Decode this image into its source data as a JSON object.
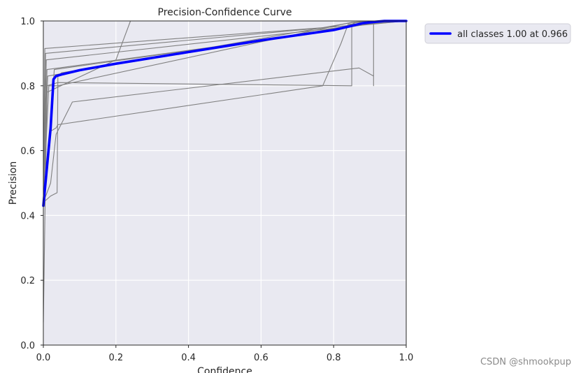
{
  "chart_data": {
    "type": "line",
    "title": "Precision-Confidence Curve",
    "xlabel": "Confidence",
    "ylabel": "Precision",
    "xlim": [
      0,
      1
    ],
    "ylim": [
      0,
      1
    ],
    "xticks": [
      "0.0",
      "0.2",
      "0.4",
      "0.6",
      "0.8",
      "1.0"
    ],
    "yticks": [
      "0.0",
      "0.2",
      "0.4",
      "0.6",
      "0.8",
      "1.0"
    ],
    "grid": true,
    "legend_position": "outside top-right",
    "series": [
      {
        "name": "all classes 1.00 at 0.966",
        "color": "#0000ff",
        "x": [
          0.0,
          0.01,
          0.02,
          0.028,
          0.035,
          0.05,
          0.1,
          0.2,
          0.3,
          0.4,
          0.5,
          0.6,
          0.7,
          0.8,
          0.85,
          0.88,
          0.91,
          0.94,
          0.966,
          1.0
        ],
        "y": [
          0.43,
          0.55,
          0.67,
          0.82,
          0.83,
          0.835,
          0.848,
          0.868,
          0.886,
          0.904,
          0.922,
          0.94,
          0.956,
          0.972,
          0.985,
          0.993,
          0.997,
          1.0,
          1.0,
          1.0
        ]
      }
    ],
    "class_curves": [
      {
        "color": "#808080",
        "x": [
          0.0,
          0.005,
          0.01,
          0.2,
          0.24
        ],
        "y": [
          0.07,
          0.45,
          0.78,
          0.88,
          1.0
        ]
      },
      {
        "color": "#808080",
        "x": [
          0.0,
          0.004,
          0.9,
          1.0
        ],
        "y": [
          0.45,
          0.915,
          0.99,
          1.0
        ]
      },
      {
        "color": "#808080",
        "x": [
          0.0,
          0.006,
          0.88,
          1.0
        ],
        "y": [
          0.44,
          0.9,
          0.99,
          1.0
        ]
      },
      {
        "color": "#808080",
        "x": [
          0.0,
          0.008,
          0.86,
          1.0
        ],
        "y": [
          0.44,
          0.88,
          0.985,
          1.0
        ]
      },
      {
        "color": "#808080",
        "x": [
          0.0,
          0.01,
          0.8,
          0.85,
          1.0
        ],
        "y": [
          0.45,
          0.85,
          0.97,
          0.99,
          1.0
        ]
      },
      {
        "color": "#808080",
        "x": [
          0.0,
          0.012,
          0.85,
          1.0
        ],
        "y": [
          0.45,
          0.83,
          0.995,
          1.0
        ]
      },
      {
        "color": "#808080",
        "x": [
          0.0,
          0.01,
          0.04,
          0.85,
          0.85,
          0.86,
          1.0
        ],
        "y": [
          0.45,
          0.8,
          0.81,
          0.8,
          0.99,
          0.995,
          1.0
        ]
      },
      {
        "color": "#808080",
        "x": [
          0.0,
          0.015,
          0.04,
          0.85,
          0.9,
          1.0
        ],
        "y": [
          0.45,
          0.8,
          0.8,
          0.996,
          1.0,
          1.0
        ]
      },
      {
        "color": "#808080",
        "x": [
          0.0,
          0.02,
          0.035,
          0.04,
          0.77,
          0.82,
          0.84,
          1.0
        ],
        "y": [
          0.44,
          0.66,
          0.67,
          0.68,
          0.8,
          0.93,
          0.99,
          1.0
        ]
      },
      {
        "color": "#808080",
        "x": [
          0.0,
          0.02,
          0.035,
          0.08,
          0.87,
          0.91,
          0.91,
          0.91,
          1.0
        ],
        "y": [
          0.44,
          0.5,
          0.65,
          0.75,
          0.855,
          0.83,
          0.8,
          1.0,
          1.0
        ]
      },
      {
        "color": "#808080",
        "x": [
          0.0,
          0.02,
          0.038,
          0.04,
          0.05,
          0.95,
          1.0
        ],
        "y": [
          0.44,
          0.46,
          0.47,
          0.83,
          0.84,
          1.0,
          1.0
        ]
      },
      {
        "color": "#808080",
        "x": [
          0.0,
          0.015,
          0.03,
          0.6,
          0.92,
          1.0
        ],
        "y": [
          0.44,
          0.6,
          0.85,
          0.94,
          0.998,
          1.0
        ]
      }
    ]
  },
  "watermark": "CSDN @shmookpup"
}
